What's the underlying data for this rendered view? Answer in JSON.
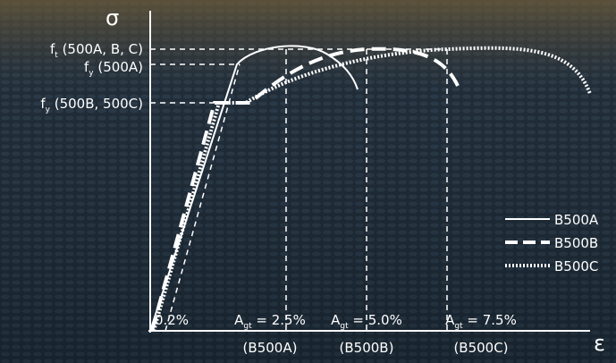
{
  "axes": {
    "y_label": "σ",
    "x_label": "ε"
  },
  "stress_labels": [
    {
      "main": "f",
      "sub": "t",
      "rest": " (500A, B, C)"
    },
    {
      "main": "f",
      "sub": "y",
      "rest": " (500A)"
    },
    {
      "main": "f",
      "sub": "y",
      "rest": " (500B, 500C)"
    }
  ],
  "strain_labels": [
    {
      "text": "0.2%"
    },
    {
      "main": "A",
      "sub": "gt",
      "rest": " = 2.5%",
      "grade": "(B500A)"
    },
    {
      "main": "A",
      "sub": "gt",
      "rest": " = 5.0%",
      "grade": "(B500B)"
    },
    {
      "main": "A",
      "sub": "gt",
      "rest": " = 7.5%",
      "grade": "(B500C)"
    }
  ],
  "legend": [
    "B500A",
    "B500B",
    "B500C"
  ]
}
